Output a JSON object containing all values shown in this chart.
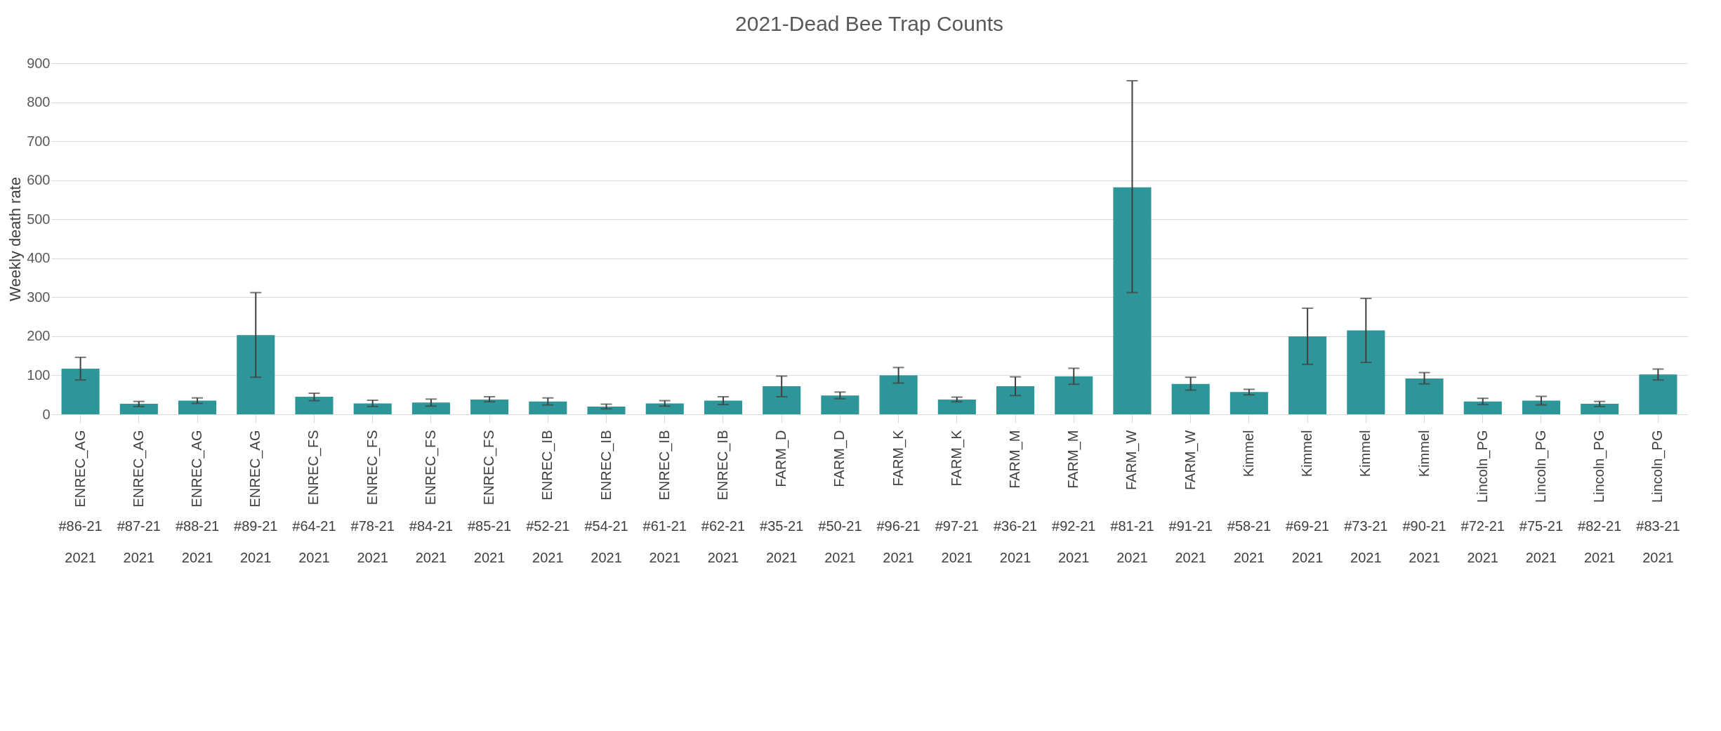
{
  "chart_data": {
    "type": "bar",
    "title": "2021-Dead Bee Trap Counts",
    "ylabel": "Weekly death rate",
    "categories": [
      "ENREC_AG\n#86-21\n2021",
      "ENREC_AG\n#87-21\n2021",
      "ENREC_AG\n#88-21\n2021",
      "ENREC_AG\n#89-21\n2021",
      "ENREC_FS\n#64-21\n2021",
      "ENREC_FS\n#78-21\n2021",
      "ENREC_FS\n#84-21\n2021",
      "ENREC_FS\n#85-21\n2021",
      "ENREC_IB\n#52-21\n2021",
      "ENREC_IB\n#54-21\n2021",
      "ENREC_IB\n#61-21\n2021",
      "ENREC_IB\n#62-21\n2021",
      "FARM_D\n#35-21\n2021",
      "FARM_D\n#50-21\n2021",
      "FARM_K\n#96-21\n2021",
      "FARM_K\n#97-21\n2021",
      "FARM_M\n#36-21\n2021",
      "FARM_M\n#92-21\n2021",
      "FARM_W\n#81-21\n2021",
      "FARM_W\n#91-21\n2021",
      "Kimmel\n#58-21\n2021",
      "Kimmel\n#69-21\n2021",
      "Kimmel\n#73-21\n2021",
      "Kimmel\n#90-21\n2021",
      "Lincoln_PG\n#72-21\n2021",
      "Lincoln_PG\n#75-21\n2021",
      "Lincoln_PG\n#82-21\n2021",
      "Lincoln_PG\n#83-21\n2021"
    ],
    "values": [
      117,
      27,
      35,
      203,
      45,
      28,
      30,
      38,
      33,
      20,
      28,
      35,
      72,
      48,
      100,
      38,
      72,
      97,
      582,
      78,
      57,
      200,
      215,
      92,
      33,
      35,
      27,
      102
    ],
    "errors": [
      [
        88,
        146
      ],
      [
        20,
        33
      ],
      [
        28,
        42
      ],
      [
        95,
        312
      ],
      [
        35,
        54
      ],
      [
        20,
        36
      ],
      [
        21,
        39
      ],
      [
        32,
        45
      ],
      [
        24,
        42
      ],
      [
        14,
        26
      ],
      [
        21,
        35
      ],
      [
        25,
        45
      ],
      [
        45,
        98
      ],
      [
        40,
        57
      ],
      [
        80,
        120
      ],
      [
        32,
        44
      ],
      [
        48,
        96
      ],
      [
        77,
        118
      ],
      [
        312,
        855
      ],
      [
        62,
        95
      ],
      [
        50,
        64
      ],
      [
        128,
        272
      ],
      [
        133,
        297
      ],
      [
        78,
        107
      ],
      [
        25,
        41
      ],
      [
        24,
        46
      ],
      [
        20,
        33
      ],
      [
        88,
        116
      ]
    ],
    "color": "#2e9599",
    "ylim": [
      0,
      900
    ],
    "yticks": [
      0,
      100,
      200,
      300,
      400,
      500,
      600,
      700,
      800,
      900
    ],
    "grid": "y"
  }
}
